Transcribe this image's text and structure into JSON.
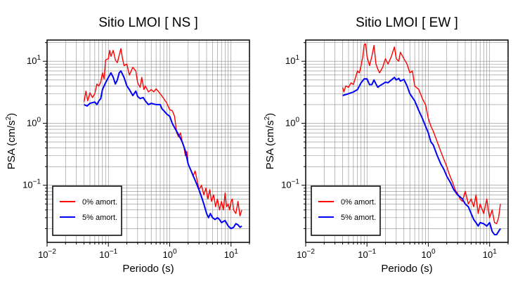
{
  "chart_data": [
    {
      "type": "line",
      "title": "Sitio LMOI [ NS ]",
      "xlabel": "Periodo (s)",
      "ylabel": "PSA (cm/s²)",
      "xscale": "log",
      "yscale": "log",
      "xlim": [
        0.01,
        20
      ],
      "ylim": [
        0.012,
        22
      ],
      "grid": true,
      "legend_position": "bottom-left",
      "xticks": [
        {
          "value": 0.01,
          "base": "10",
          "exp": "−2"
        },
        {
          "value": 0.1,
          "base": "10",
          "exp": "−1"
        },
        {
          "value": 1,
          "base": "10",
          "exp": "0"
        },
        {
          "value": 10,
          "base": "10",
          "exp": "1"
        }
      ],
      "yticks": [
        {
          "value": 0.1,
          "base": "10",
          "exp": "−1"
        },
        {
          "value": 1,
          "base": "10",
          "exp": "0"
        },
        {
          "value": 10,
          "base": "10",
          "exp": "1"
        }
      ],
      "series": [
        {
          "name": "0% amort.",
          "color": "#ff0000",
          "points": [
            [
              0.04,
              2.2
            ],
            [
              0.043,
              3.3
            ],
            [
              0.046,
              2.3
            ],
            [
              0.05,
              3.1
            ],
            [
              0.055,
              2.6
            ],
            [
              0.06,
              3.0
            ],
            [
              0.065,
              4.3
            ],
            [
              0.07,
              4.0
            ],
            [
              0.075,
              4.6
            ],
            [
              0.08,
              6.5
            ],
            [
              0.085,
              5.2
            ],
            [
              0.09,
              10.5
            ],
            [
              0.1,
              11.0
            ],
            [
              0.105,
              15.0
            ],
            [
              0.11,
              12.0
            ],
            [
              0.12,
              15.0
            ],
            [
              0.13,
              10.5
            ],
            [
              0.14,
              9.5
            ],
            [
              0.15,
              12.5
            ],
            [
              0.16,
              16.0
            ],
            [
              0.17,
              11.0
            ],
            [
              0.18,
              8.5
            ],
            [
              0.2,
              9.0
            ],
            [
              0.22,
              6.0
            ],
            [
              0.25,
              8.0
            ],
            [
              0.28,
              7.0
            ],
            [
              0.3,
              4.5
            ],
            [
              0.33,
              3.8
            ],
            [
              0.35,
              5.5
            ],
            [
              0.38,
              3.5
            ],
            [
              0.4,
              4.0
            ],
            [
              0.45,
              3.2
            ],
            [
              0.5,
              3.5
            ],
            [
              0.55,
              3.2
            ],
            [
              0.6,
              3.6
            ],
            [
              0.7,
              3.0
            ],
            [
              0.8,
              2.5
            ],
            [
              0.9,
              2.1
            ],
            [
              1.0,
              1.65
            ],
            [
              1.1,
              1.6
            ],
            [
              1.2,
              1.3
            ],
            [
              1.3,
              0.7
            ],
            [
              1.4,
              0.6
            ],
            [
              1.5,
              0.7
            ],
            [
              1.6,
              0.5
            ],
            [
              1.7,
              0.42
            ],
            [
              1.8,
              0.3
            ],
            [
              1.9,
              0.35
            ],
            [
              2.0,
              0.22
            ],
            [
              2.2,
              0.18
            ],
            [
              2.4,
              0.14
            ],
            [
              2.6,
              0.17
            ],
            [
              2.8,
              0.12
            ],
            [
              3.0,
              0.085
            ],
            [
              3.3,
              0.1
            ],
            [
              3.6,
              0.07
            ],
            [
              3.9,
              0.09
            ],
            [
              4.2,
              0.06
            ],
            [
              4.5,
              0.085
            ],
            [
              4.8,
              0.055
            ],
            [
              5.2,
              0.07
            ],
            [
              5.6,
              0.045
            ],
            [
              6.0,
              0.06
            ],
            [
              6.5,
              0.04
            ],
            [
              7.0,
              0.055
            ],
            [
              7.5,
              0.04
            ],
            [
              8.0,
              0.075
            ],
            [
              8.5,
              0.045
            ],
            [
              9.0,
              0.05
            ],
            [
              9.5,
              0.04
            ],
            [
              10.0,
              0.055
            ],
            [
              10.5,
              0.06
            ],
            [
              11.0,
              0.04
            ],
            [
              12.0,
              0.035
            ],
            [
              13.0,
              0.055
            ],
            [
              14.0,
              0.032
            ],
            [
              15.0,
              0.04
            ]
          ]
        },
        {
          "name": "5% amort.",
          "color": "#0000ff",
          "points": [
            [
              0.04,
              2.0
            ],
            [
              0.045,
              1.9
            ],
            [
              0.05,
              2.1
            ],
            [
              0.06,
              2.2
            ],
            [
              0.065,
              2.0
            ],
            [
              0.07,
              2.3
            ],
            [
              0.075,
              2.5
            ],
            [
              0.08,
              3.5
            ],
            [
              0.09,
              4.5
            ],
            [
              0.1,
              5.5
            ],
            [
              0.11,
              6.5
            ],
            [
              0.12,
              5.5
            ],
            [
              0.13,
              4.3
            ],
            [
              0.14,
              5.0
            ],
            [
              0.15,
              6.5
            ],
            [
              0.16,
              7.0
            ],
            [
              0.18,
              5.5
            ],
            [
              0.2,
              4.0
            ],
            [
              0.22,
              3.5
            ],
            [
              0.25,
              2.8
            ],
            [
              0.28,
              3.3
            ],
            [
              0.3,
              2.7
            ],
            [
              0.33,
              2.5
            ],
            [
              0.37,
              2.6
            ],
            [
              0.4,
              2.3
            ],
            [
              0.45,
              2.0
            ],
            [
              0.5,
              2.1
            ],
            [
              0.6,
              2.0
            ],
            [
              0.7,
              2.0
            ],
            [
              0.75,
              1.7
            ],
            [
              0.8,
              1.6
            ],
            [
              0.9,
              1.4
            ],
            [
              1.0,
              1.3
            ],
            [
              1.1,
              1.0
            ],
            [
              1.2,
              0.85
            ],
            [
              1.4,
              0.65
            ],
            [
              1.6,
              0.5
            ],
            [
              1.8,
              0.36
            ],
            [
              2.0,
              0.22
            ],
            [
              2.3,
              0.16
            ],
            [
              2.6,
              0.12
            ],
            [
              3.0,
              0.085
            ],
            [
              3.3,
              0.065
            ],
            [
              3.6,
              0.05
            ],
            [
              4.0,
              0.035
            ],
            [
              4.3,
              0.03
            ],
            [
              4.6,
              0.035
            ],
            [
              5.0,
              0.03
            ],
            [
              5.5,
              0.028
            ],
            [
              6.0,
              0.03
            ],
            [
              6.5,
              0.028
            ],
            [
              7.0,
              0.025
            ],
            [
              8.0,
              0.027
            ],
            [
              9.0,
              0.022
            ],
            [
              10.0,
              0.02
            ],
            [
              11.0,
              0.021
            ],
            [
              12.0,
              0.024
            ],
            [
              13.0,
              0.023
            ],
            [
              14.0,
              0.021
            ],
            [
              15.0,
              0.022
            ]
          ]
        }
      ]
    },
    {
      "type": "line",
      "title": "Sitio LMOI [ EW ]",
      "xlabel": "Periodo (s)",
      "ylabel": "PSA (cm/s²)",
      "xscale": "log",
      "yscale": "log",
      "xlim": [
        0.01,
        20
      ],
      "ylim": [
        0.012,
        22
      ],
      "grid": true,
      "legend_position": "bottom-left",
      "xticks": [
        {
          "value": 0.01,
          "base": "10",
          "exp": "−2"
        },
        {
          "value": 0.1,
          "base": "10",
          "exp": "−1"
        },
        {
          "value": 1,
          "base": "10",
          "exp": "0"
        },
        {
          "value": 10,
          "base": "10",
          "exp": "1"
        }
      ],
      "yticks": [
        {
          "value": 0.1,
          "base": "10",
          "exp": "−1"
        },
        {
          "value": 1,
          "base": "10",
          "exp": "0"
        },
        {
          "value": 10,
          "base": "10",
          "exp": "1"
        }
      ],
      "series": [
        {
          "name": "0% amort.",
          "color": "#ff0000",
          "points": [
            [
              0.04,
              3.8
            ],
            [
              0.042,
              3.2
            ],
            [
              0.045,
              4.0
            ],
            [
              0.05,
              3.8
            ],
            [
              0.055,
              4.5
            ],
            [
              0.06,
              4.2
            ],
            [
              0.065,
              5.5
            ],
            [
              0.07,
              7.0
            ],
            [
              0.075,
              6.5
            ],
            [
              0.08,
              8.5
            ],
            [
              0.085,
              11.5
            ],
            [
              0.09,
              18.5
            ],
            [
              0.095,
              19.0
            ],
            [
              0.1,
              12.0
            ],
            [
              0.11,
              8.5
            ],
            [
              0.12,
              12.0
            ],
            [
              0.13,
              18.0
            ],
            [
              0.14,
              9.0
            ],
            [
              0.15,
              7.5
            ],
            [
              0.16,
              6.5
            ],
            [
              0.18,
              8.0
            ],
            [
              0.2,
              11.0
            ],
            [
              0.22,
              9.0
            ],
            [
              0.25,
              12.0
            ],
            [
              0.28,
              17.0
            ],
            [
              0.3,
              11.0
            ],
            [
              0.33,
              10.0
            ],
            [
              0.35,
              14.0
            ],
            [
              0.4,
              11.0
            ],
            [
              0.45,
              9.0
            ],
            [
              0.5,
              6.5
            ],
            [
              0.55,
              7.0
            ],
            [
              0.6,
              4.0
            ],
            [
              0.7,
              3.5
            ],
            [
              0.8,
              2.5
            ],
            [
              0.9,
              2.0
            ],
            [
              1.0,
              1.2
            ],
            [
              1.1,
              0.9
            ],
            [
              1.2,
              0.75
            ],
            [
              1.4,
              0.5
            ],
            [
              1.6,
              0.35
            ],
            [
              1.8,
              0.26
            ],
            [
              2.0,
              0.2
            ],
            [
              2.2,
              0.15
            ],
            [
              2.5,
              0.11
            ],
            [
              2.8,
              0.08
            ],
            [
              3.0,
              0.075
            ],
            [
              3.3,
              0.06
            ],
            [
              3.6,
              0.055
            ],
            [
              4.0,
              0.08
            ],
            [
              4.5,
              0.05
            ],
            [
              5.0,
              0.06
            ],
            [
              5.5,
              0.045
            ],
            [
              6.0,
              0.07
            ],
            [
              6.5,
              0.035
            ],
            [
              7.0,
              0.05
            ],
            [
              8.0,
              0.035
            ],
            [
              9.0,
              0.06
            ],
            [
              9.5,
              0.04
            ],
            [
              10.0,
              0.03
            ],
            [
              11.0,
              0.04
            ],
            [
              12.0,
              0.025
            ],
            [
              13.0,
              0.024
            ],
            [
              14.0,
              0.03
            ],
            [
              15.0,
              0.05
            ]
          ]
        },
        {
          "name": "5% amort.",
          "color": "#0000ff",
          "points": [
            [
              0.04,
              2.8
            ],
            [
              0.05,
              3.0
            ],
            [
              0.06,
              3.2
            ],
            [
              0.07,
              3.5
            ],
            [
              0.08,
              4.5
            ],
            [
              0.09,
              5.2
            ],
            [
              0.1,
              5.2
            ],
            [
              0.11,
              4.2
            ],
            [
              0.12,
              4.2
            ],
            [
              0.13,
              5.0
            ],
            [
              0.14,
              4.3
            ],
            [
              0.15,
              3.8
            ],
            [
              0.16,
              4.0
            ],
            [
              0.18,
              4.3
            ],
            [
              0.2,
              4.6
            ],
            [
              0.22,
              4.5
            ],
            [
              0.25,
              5.0
            ],
            [
              0.28,
              5.5
            ],
            [
              0.3,
              5.0
            ],
            [
              0.33,
              5.3
            ],
            [
              0.35,
              4.8
            ],
            [
              0.4,
              5.1
            ],
            [
              0.45,
              4.0
            ],
            [
              0.5,
              3.0
            ],
            [
              0.6,
              2.3
            ],
            [
              0.7,
              1.6
            ],
            [
              0.8,
              1.2
            ],
            [
              0.9,
              0.9
            ],
            [
              1.0,
              0.7
            ],
            [
              1.1,
              0.5
            ],
            [
              1.2,
              0.45
            ],
            [
              1.4,
              0.3
            ],
            [
              1.6,
              0.22
            ],
            [
              1.8,
              0.18
            ],
            [
              2.0,
              0.14
            ],
            [
              2.3,
              0.11
            ],
            [
              2.6,
              0.085
            ],
            [
              3.0,
              0.07
            ],
            [
              3.3,
              0.065
            ],
            [
              3.6,
              0.06
            ],
            [
              4.0,
              0.05
            ],
            [
              4.5,
              0.045
            ],
            [
              5.0,
              0.035
            ],
            [
              5.5,
              0.028
            ],
            [
              6.0,
              0.025
            ],
            [
              6.5,
              0.022
            ],
            [
              7.0,
              0.025
            ],
            [
              8.0,
              0.024
            ],
            [
              9.0,
              0.022
            ],
            [
              10.0,
              0.025
            ],
            [
              11.0,
              0.018
            ],
            [
              12.0,
              0.016
            ],
            [
              13.0,
              0.016
            ],
            [
              14.0,
              0.018
            ],
            [
              15.0,
              0.02
            ]
          ]
        }
      ]
    }
  ]
}
